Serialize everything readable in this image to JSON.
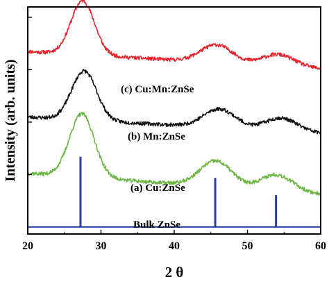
{
  "chart_data": {
    "type": "line",
    "xlabel": "2 θ",
    "ylabel": "Intensity (arb. units)",
    "xlim": [
      20,
      60
    ],
    "xticks": [
      20,
      30,
      40,
      50,
      60
    ],
    "y_tick_labels_shown": false,
    "grid": false,
    "legend": "inline labels",
    "series": [
      {
        "name": "(c) Cu:Mn:ZnSe",
        "color": "#e8222b",
        "offset": 3.2,
        "peaks": [
          {
            "center": 27.5,
            "height": 1.15,
            "width": 1.6
          },
          {
            "center": 45.8,
            "height": 0.38,
            "width": 2.2
          },
          {
            "center": 54.2,
            "height": 0.25,
            "width": 2.2
          }
        ],
        "baseline_start": 0.55,
        "baseline_end": 0.18,
        "noise": 0.04,
        "seed": 11
      },
      {
        "name": "(b) Mn:ZnSe",
        "color": "#111111",
        "offset": 1.85,
        "peaks": [
          {
            "center": 27.7,
            "height": 1.05,
            "width": 1.7
          },
          {
            "center": 46.2,
            "height": 0.4,
            "width": 2.2
          },
          {
            "center": 54.6,
            "height": 0.28,
            "width": 2.2
          }
        ],
        "baseline_start": 0.5,
        "baseline_end": 0.15,
        "noise": 0.04,
        "seed": 23
      },
      {
        "name": "(a) Cu:ZnSe",
        "color": "#6ab841",
        "offset": 0.6,
        "peaks": [
          {
            "center": 27.4,
            "height": 1.35,
            "width": 1.7
          },
          {
            "center": 45.7,
            "height": 0.55,
            "width": 2.2
          },
          {
            "center": 54.0,
            "height": 0.35,
            "width": 2.2
          }
        ],
        "baseline_start": 0.55,
        "baseline_end": 0.1,
        "noise": 0.04,
        "seed": 37
      },
      {
        "name": "Bulk ZnSe",
        "color": "#2b3fa0",
        "type": "stick",
        "offset": 0.0,
        "sticks": [
          {
            "x": 27.2,
            "height": 1.5
          },
          {
            "x": 45.6,
            "height": 1.05
          },
          {
            "x": 53.9,
            "height": 0.68
          }
        ]
      }
    ]
  }
}
